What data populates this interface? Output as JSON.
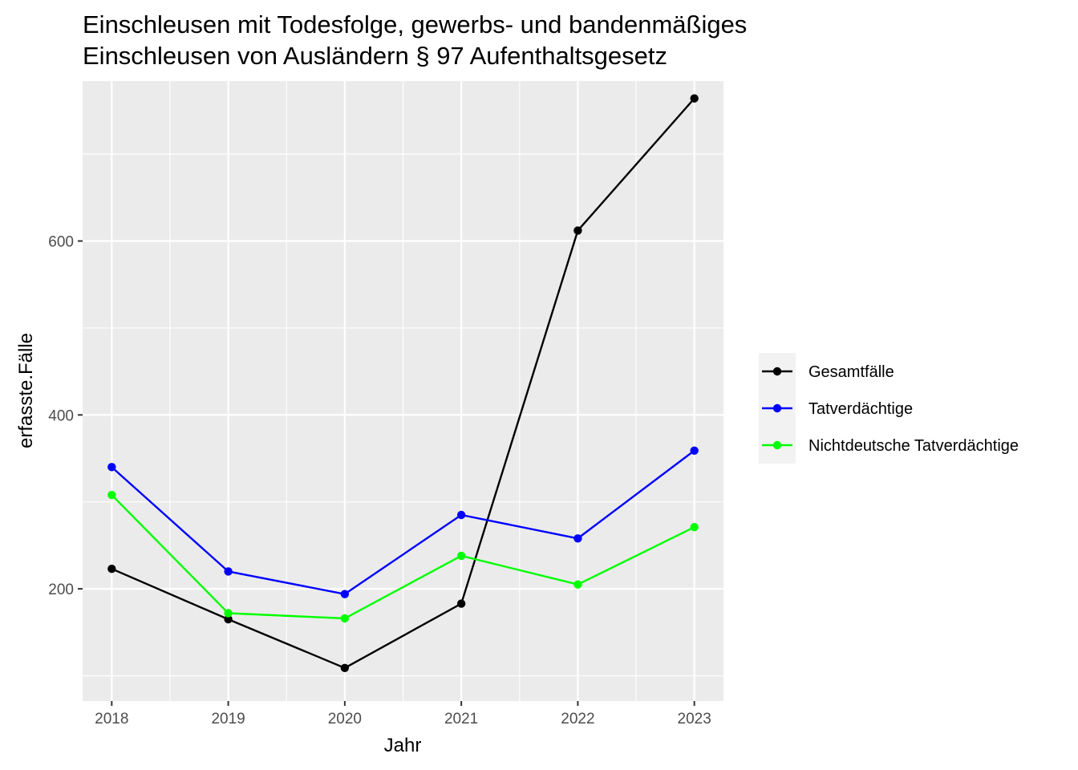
{
  "chart_data": {
    "type": "line",
    "title_lines": [
      "Einschleusen mit Todesfolge, gewerbs- und bandenmäßiges",
      "Einschleusen von Ausländern § 97 Aufenthaltsgesetz"
    ],
    "xlabel": "Jahr",
    "ylabel": "erfasste.Fälle",
    "x": [
      2018,
      2019,
      2020,
      2021,
      2022,
      2023
    ],
    "x_tick_labels": [
      "2018",
      "2019",
      "2020",
      "2021",
      "2022",
      "2023"
    ],
    "xlim": [
      2017.75,
      2023.25
    ],
    "y_ticks": [
      200,
      400,
      600
    ],
    "y_tick_labels": [
      "200",
      "400",
      "600"
    ],
    "y_minor_ticks": [
      100,
      300,
      500,
      700
    ],
    "ylim": [
      71,
      784
    ],
    "grid": true,
    "legend_position": "right",
    "series": [
      {
        "name": "Gesamtfälle",
        "color": "#000000",
        "values": [
          223,
          165,
          109,
          183,
          612,
          764
        ]
      },
      {
        "name": "Tatverdächtige",
        "color": "#0000ff",
        "values": [
          340,
          220,
          194,
          285,
          258,
          359
        ]
      },
      {
        "name": "Nichtdeutsche Tatverdächtige",
        "color": "#00ff00",
        "values": [
          308,
          172,
          166,
          238,
          205,
          271
        ]
      }
    ],
    "panel_background": "#ebebeb",
    "grid_color": "#ffffff"
  }
}
